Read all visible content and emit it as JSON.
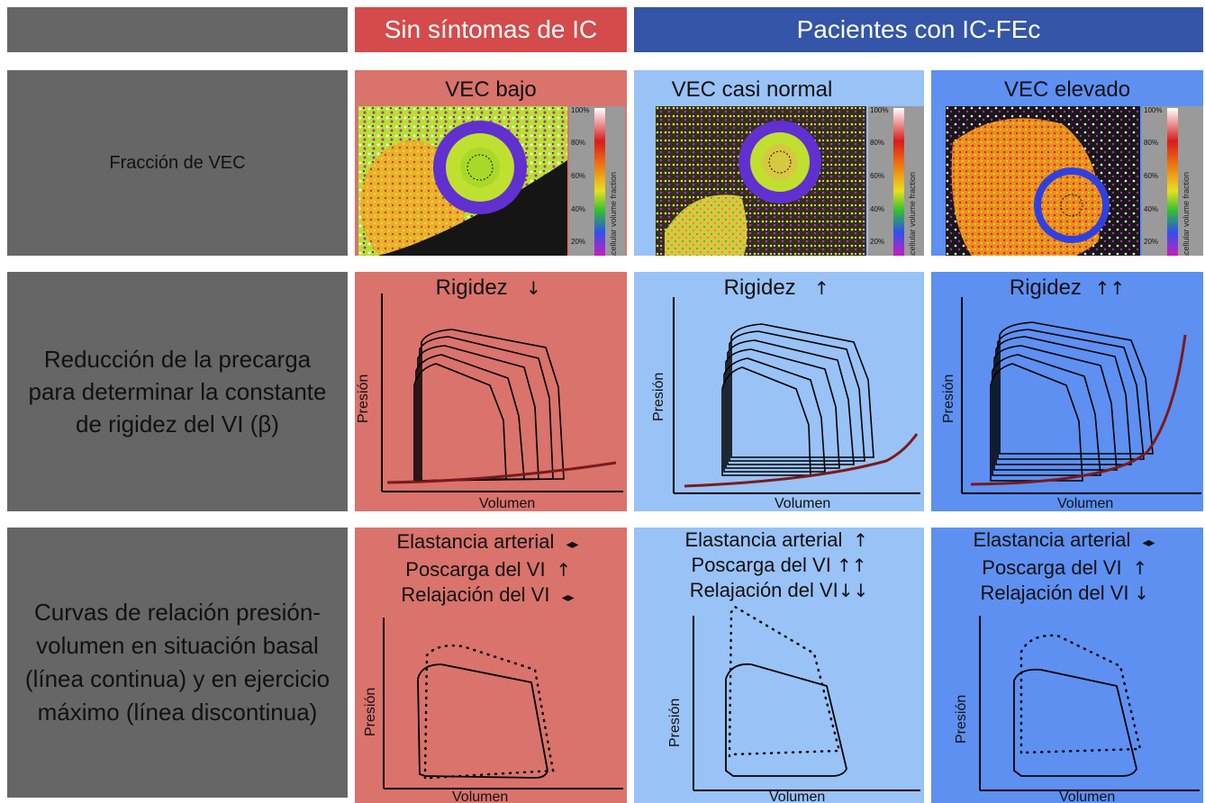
{
  "header": {
    "col1": "Sin síntomas de IC",
    "col23": "Pacientes con IC-FEc"
  },
  "colors": {
    "row_label_bg": "#666666",
    "red_header": "#d54a4b",
    "blue_header": "#3455a8",
    "red_panel": "#d9736c",
    "light_blue_panel": "#99c2f6",
    "blue_panel": "#5d90f1",
    "edpvr_curve": "#7a1a1a"
  },
  "rows": {
    "ecv": "Fracción de VEC",
    "stiffness": "Reducción de la precarga para determinar la constante de rigidez del VI (β)",
    "pv": "Curvas de relación presión-volumen en situación basal (línea continua) y en ejercicio máximo (línea discontinua)"
  },
  "ecv_panels": [
    {
      "title": "VEC bajo"
    },
    {
      "title": "VEC casi normal"
    },
    {
      "title": "VEC elevado"
    }
  ],
  "colorbar": {
    "ticks": [
      "100%",
      "80%",
      "60%",
      "40%",
      "20%",
      "0%"
    ],
    "label": "Extracellular volume fraction"
  },
  "stiffness_panels": [
    {
      "title": "Rigidez",
      "arrow": "↓"
    },
    {
      "title": "Rigidez",
      "arrow": "↑"
    },
    {
      "title": "Rigidez",
      "arrow": "↑↑"
    }
  ],
  "pv_panels": [
    {
      "l1": "Elastancia arterial",
      "a1": "◂▸",
      "l2": "Poscarga del VI",
      "a2": "↑",
      "l3": "Relajación del VI",
      "a3": "◂▸"
    },
    {
      "l1": "Elastancia arterial",
      "a1": "↑",
      "l2": "Poscarga del VI",
      "a2": "↑↑",
      "l3": "Relajación del VI",
      "a3": "↓↓"
    },
    {
      "l1": "Elastancia arterial",
      "a1": "◂▸",
      "l2": "Poscarga del VI",
      "a2": "↑",
      "l3": "Relajación del VI",
      "a3": "↓"
    }
  ],
  "axes": {
    "y": "Presión",
    "x": "Volumen"
  }
}
